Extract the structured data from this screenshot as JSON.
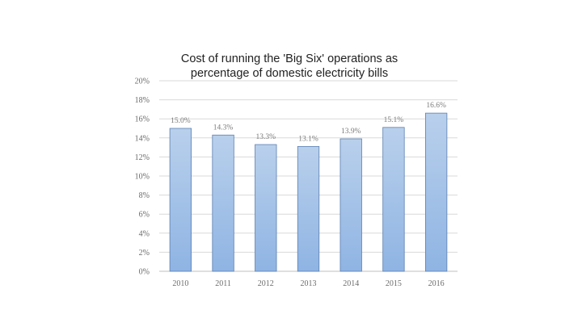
{
  "chart_data": {
    "type": "bar",
    "title_lines": [
      "Cost of running the 'Big Six' operations as",
      "percentage of domestic electricity bills"
    ],
    "categories": [
      "2010",
      "2011",
      "2012",
      "2013",
      "2014",
      "2015",
      "2016"
    ],
    "values": [
      15.0,
      14.3,
      13.3,
      13.1,
      13.9,
      15.1,
      16.6
    ],
    "data_labels": [
      "15.0%",
      "14.3%",
      "13.3%",
      "13.1%",
      "13.9%",
      "15.1%",
      "16.6%"
    ],
    "y_ticks": [
      0,
      2,
      4,
      6,
      8,
      10,
      12,
      14,
      16,
      18,
      20
    ],
    "y_tick_labels": [
      "0%",
      "2%",
      "4%",
      "6%",
      "8%",
      "10%",
      "12%",
      "14%",
      "16%",
      "18%",
      "20%"
    ],
    "ylim": [
      0,
      20
    ],
    "grid": true,
    "legend": "none",
    "colors": {
      "bar_top": "#b9d0ec",
      "bar_bottom": "#8fb4e3",
      "bar_stroke": "#5b7fb0",
      "grid": "#d9d9d9",
      "axis": "#bfbfbf"
    }
  }
}
